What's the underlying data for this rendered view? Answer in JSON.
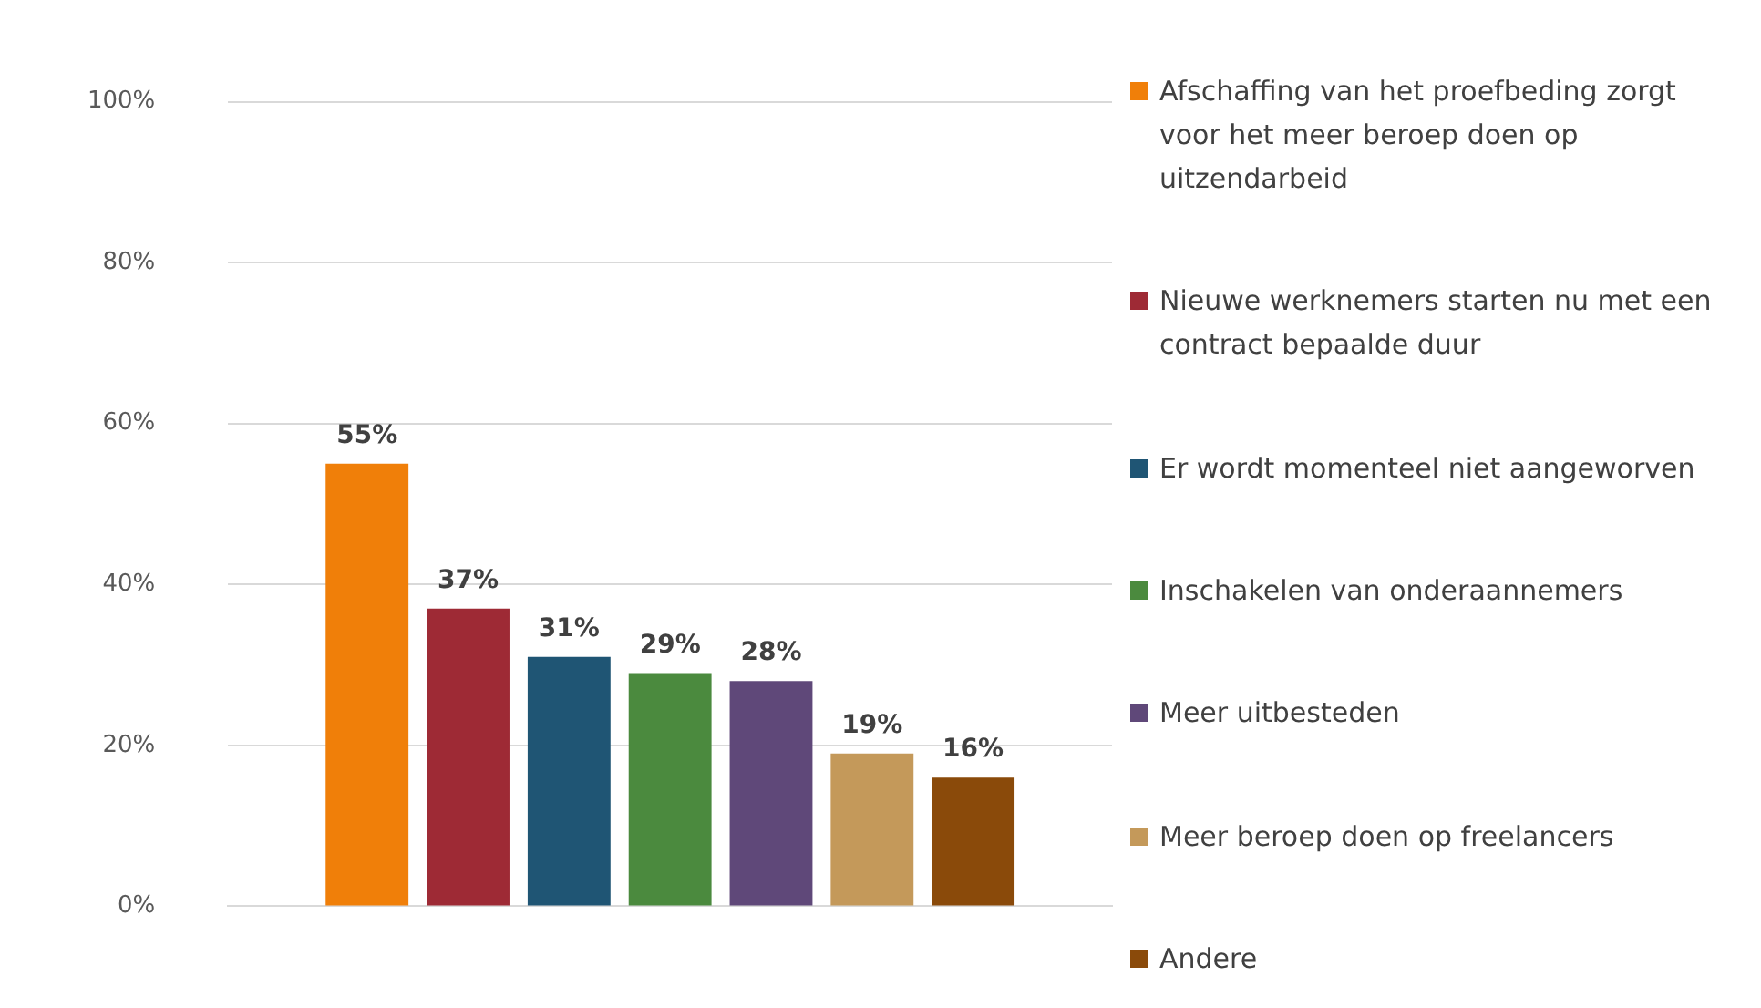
{
  "chart_data": {
    "type": "bar",
    "categories": [
      null
    ],
    "series": [
      {
        "name": "Afschaffing van het proefbeding zorgt voor het meer beroep doen op uitzendarbeid",
        "color": "#f07f09",
        "values": [
          55
        ],
        "value_labels": [
          "55%"
        ]
      },
      {
        "name": "Nieuwe werknemers starten nu met een contract bepaalde duur",
        "color": "#9e2a35",
        "values": [
          37
        ],
        "value_labels": [
          "37%"
        ]
      },
      {
        "name": "Er wordt momenteel niet aangeworven",
        "color": "#1f5574",
        "values": [
          31
        ],
        "value_labels": [
          "31%"
        ]
      },
      {
        "name": "Inschakelen van onderaannemers",
        "color": "#4b8a3e",
        "values": [
          29
        ],
        "value_labels": [
          "29%"
        ]
      },
      {
        "name": "Meer uitbesteden",
        "color": "#5f4879",
        "values": [
          28
        ],
        "value_labels": [
          "28%"
        ]
      },
      {
        "name": "Meer beroep doen op freelancers",
        "color": "#c4995a",
        "values": [
          19
        ],
        "value_labels": [
          "19%"
        ]
      },
      {
        "name": "Andere",
        "color": "#8a4a0a",
        "values": [
          16
        ],
        "value_labels": [
          "16%"
        ]
      }
    ],
    "ylim": [
      0,
      100
    ],
    "yticks": [
      {
        "value": 0,
        "label": "0%"
      },
      {
        "value": 20,
        "label": "20%"
      },
      {
        "value": 40,
        "label": "40%"
      },
      {
        "value": 60,
        "label": "60%"
      },
      {
        "value": 80,
        "label": "80%"
      },
      {
        "value": 100,
        "label": "100%"
      }
    ],
    "grid": "y",
    "legend": "right",
    "tick_labels": "y"
  }
}
